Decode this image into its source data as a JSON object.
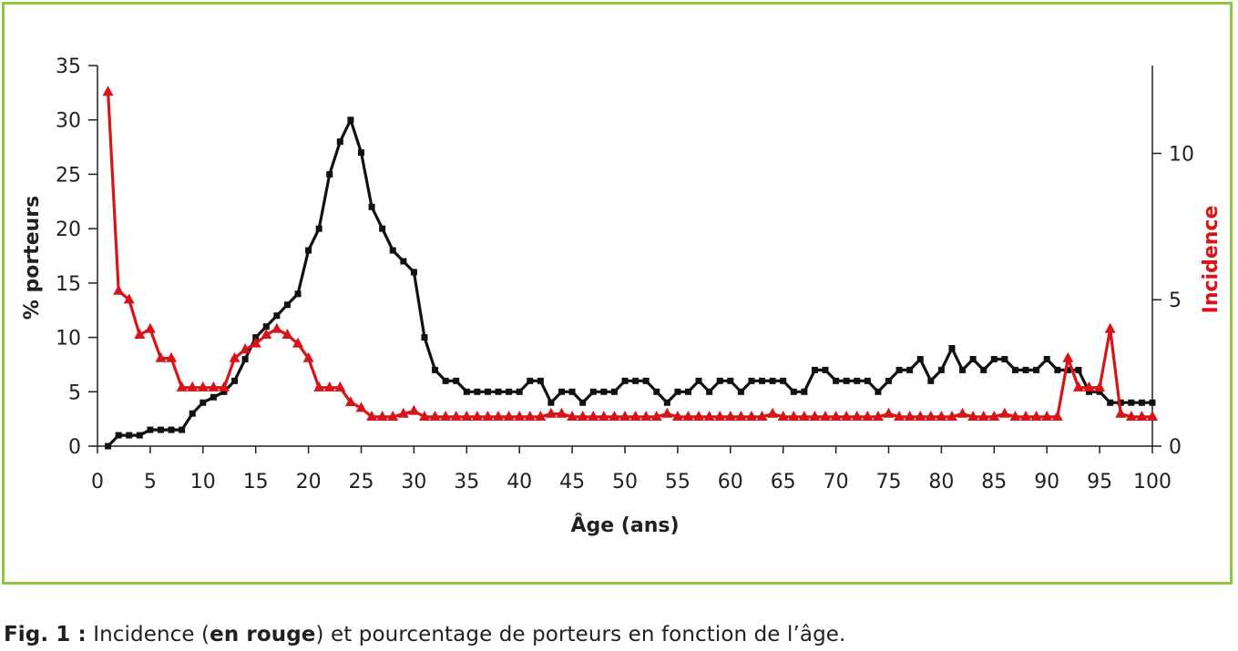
{
  "chart_data": {
    "type": "line",
    "xlabel": "Âge (ans)",
    "ylabel": "% porteurs",
    "y2label": "Incidence",
    "xlim": [
      0,
      100
    ],
    "ylim": [
      0,
      35
    ],
    "y2lim": [
      0,
      13
    ],
    "xticks": [
      0,
      5,
      10,
      15,
      20,
      25,
      30,
      35,
      40,
      45,
      50,
      55,
      60,
      65,
      70,
      75,
      80,
      85,
      90,
      95,
      100
    ],
    "yticks": [
      0,
      5,
      10,
      15,
      20,
      25,
      30,
      35
    ],
    "y2ticks": [
      0,
      5,
      10
    ],
    "grid": false,
    "colors": {
      "porteurs": "#111111",
      "incidence": "#d7141a",
      "frame": "#8dc63f",
      "axis": "#231f20"
    },
    "series": [
      {
        "axis": "left",
        "marker": "square",
        "x": [
          1,
          2,
          3,
          4,
          5,
          6,
          7,
          8,
          9,
          10,
          11,
          12,
          13,
          14,
          15,
          16,
          17,
          18,
          19,
          20,
          21,
          22,
          23,
          24,
          25,
          26,
          27,
          28,
          29,
          30,
          31,
          32,
          33,
          34,
          35,
          36,
          37,
          38,
          39,
          40,
          41,
          42,
          43,
          44,
          45,
          46,
          47,
          48,
          49,
          50,
          51,
          52,
          53,
          54,
          55,
          56,
          57,
          58,
          59,
          60,
          61,
          62,
          63,
          64,
          65,
          66,
          67,
          68,
          69,
          70,
          71,
          72,
          73,
          74,
          75,
          76,
          77,
          78,
          79,
          80,
          81,
          82,
          83,
          84,
          85,
          86,
          87,
          88,
          89,
          90,
          91,
          92,
          93,
          94,
          95,
          96,
          97,
          98,
          99,
          100
        ],
        "values": [
          0,
          1,
          1,
          1,
          1.5,
          1.5,
          1.5,
          1.5,
          3,
          4,
          4.5,
          5,
          6,
          8,
          10,
          11,
          12,
          13,
          14,
          18,
          20,
          25,
          28,
          30,
          27,
          22,
          20,
          18,
          17,
          16,
          10,
          7,
          6,
          6,
          5,
          5,
          5,
          5,
          5,
          5,
          6,
          6,
          4,
          5,
          5,
          4,
          5,
          5,
          5,
          6,
          6,
          6,
          5,
          4,
          5,
          5,
          6,
          5,
          6,
          6,
          5,
          6,
          6,
          6,
          6,
          5,
          5,
          7,
          7,
          6,
          6,
          6,
          6,
          5,
          6,
          7,
          7,
          8,
          6,
          7,
          9,
          7,
          8,
          7,
          8,
          8,
          7,
          7,
          7,
          8,
          7,
          7,
          7,
          5,
          5,
          4,
          4,
          4,
          4,
          4
        ]
      },
      {
        "axis": "right",
        "marker": "triangle",
        "x": [
          1,
          2,
          3,
          4,
          5,
          6,
          7,
          8,
          9,
          10,
          11,
          12,
          13,
          14,
          15,
          16,
          17,
          18,
          19,
          20,
          21,
          22,
          23,
          24,
          25,
          26,
          27,
          28,
          29,
          30,
          31,
          32,
          33,
          34,
          35,
          36,
          37,
          38,
          39,
          40,
          41,
          42,
          43,
          44,
          45,
          46,
          47,
          48,
          49,
          50,
          51,
          52,
          53,
          54,
          55,
          56,
          57,
          58,
          59,
          60,
          61,
          62,
          63,
          64,
          65,
          66,
          67,
          68,
          69,
          70,
          71,
          72,
          73,
          74,
          75,
          76,
          77,
          78,
          79,
          80,
          81,
          82,
          83,
          84,
          85,
          86,
          87,
          88,
          89,
          90,
          91,
          92,
          93,
          94,
          95,
          96,
          97,
          98,
          99,
          100
        ],
        "values": [
          12.1,
          5.3,
          5.0,
          3.8,
          4.0,
          3.0,
          3.0,
          2.0,
          2.0,
          2.0,
          2.0,
          2.0,
          3.0,
          3.3,
          3.5,
          3.8,
          4.0,
          3.8,
          3.5,
          3.0,
          2.0,
          2.0,
          2.0,
          1.5,
          1.3,
          1.0,
          1.0,
          1.0,
          1.1,
          1.2,
          1.0,
          1.0,
          1.0,
          1.0,
          1.0,
          1.0,
          1.0,
          1.0,
          1.0,
          1.0,
          1.0,
          1.0,
          1.1,
          1.1,
          1.0,
          1.0,
          1.0,
          1.0,
          1.0,
          1.0,
          1.0,
          1.0,
          1.0,
          1.1,
          1.0,
          1.0,
          1.0,
          1.0,
          1.0,
          1.0,
          1.0,
          1.0,
          1.0,
          1.1,
          1.0,
          1.0,
          1.0,
          1.0,
          1.0,
          1.0,
          1.0,
          1.0,
          1.0,
          1.0,
          1.1,
          1.0,
          1.0,
          1.0,
          1.0,
          1.0,
          1.0,
          1.1,
          1.0,
          1.0,
          1.0,
          1.1,
          1.0,
          1.0,
          1.0,
          1.0,
          1.0,
          3.0,
          2.0,
          2.0,
          2.0,
          4.0,
          1.1,
          1.0,
          1.0,
          1.0
        ]
      }
    ]
  },
  "caption": {
    "prefix": "Fig. 1 :",
    "part1": " Incidence (",
    "bold": "en rouge",
    "part2": ") et pourcentage de porteurs en fonction de l’âge."
  }
}
